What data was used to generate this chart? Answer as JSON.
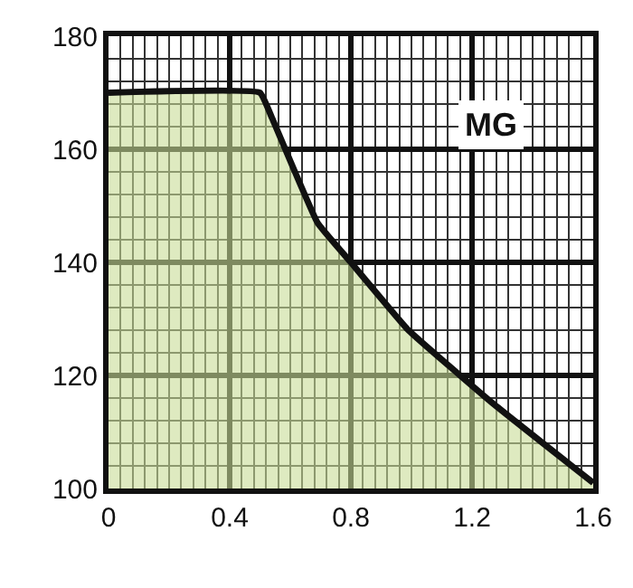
{
  "chart_data": {
    "type": "area",
    "x": [
      0,
      0.5,
      0.54,
      0.69,
      0.8,
      0.99,
      1.27,
      1.6
    ],
    "series": [
      {
        "color": "#111111",
        "values": [
          170,
          170,
          165.5,
          147,
          140,
          128,
          115,
          101
        ]
      }
    ],
    "xlim": [
      0,
      1.6
    ],
    "ylim": [
      100,
      180
    ],
    "xticks": [
      {
        "value": 0,
        "label": "0"
      },
      0.4,
      0.8,
      1.2,
      1.6
    ],
    "yticks": [
      100,
      120,
      140,
      160,
      180
    ],
    "grid": true,
    "annotations": [
      "MG"
    ]
  }
}
